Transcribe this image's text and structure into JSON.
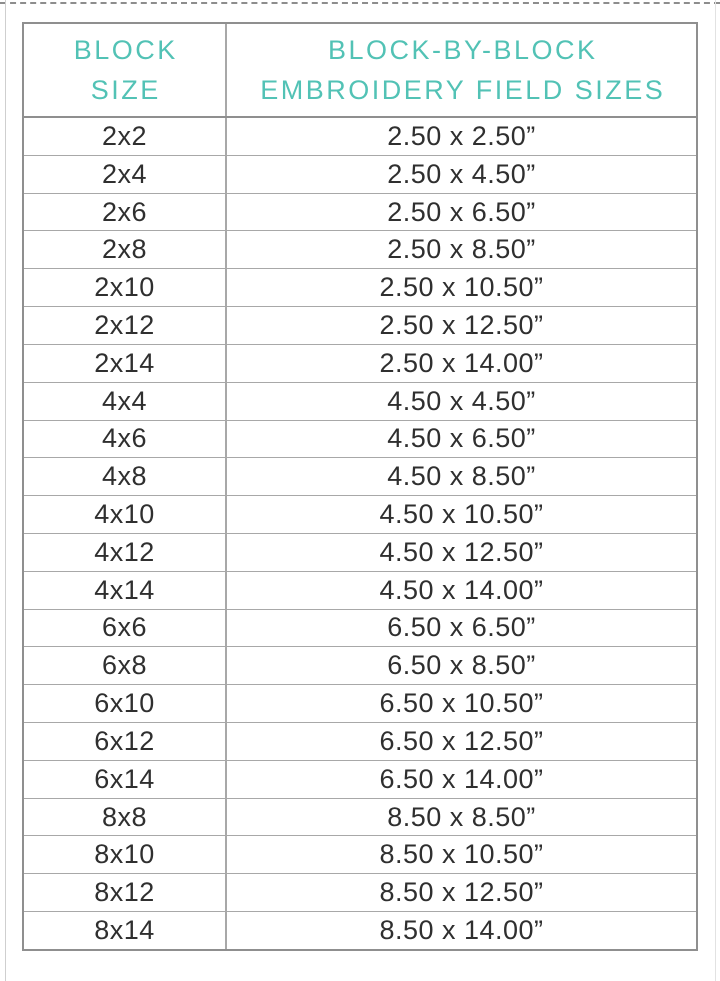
{
  "colors": {
    "accent_teal": "#52c2b5",
    "body_text": "#2f2f2f",
    "border_outer": "#8f8f8f",
    "border_inner": "#a8a8a8",
    "background": "#ffffff"
  },
  "chart_data": {
    "type": "table",
    "title": "Block-by-Block Embroidery Field Sizes",
    "columns": [
      {
        "line1": "BLOCK",
        "line2": "SIZE"
      },
      {
        "line1": "BLOCK-BY-BLOCK",
        "line2": "EMBROIDERY FIELD SIZES"
      }
    ],
    "rows": [
      {
        "block_size": "2x2",
        "field_size": "2.50 x 2.50”"
      },
      {
        "block_size": "2x4",
        "field_size": "2.50 x 4.50”"
      },
      {
        "block_size": "2x6",
        "field_size": "2.50 x 6.50”"
      },
      {
        "block_size": "2x8",
        "field_size": "2.50 x 8.50”"
      },
      {
        "block_size": "2x10",
        "field_size": "2.50 x 10.50”"
      },
      {
        "block_size": "2x12",
        "field_size": "2.50 x 12.50”"
      },
      {
        "block_size": "2x14",
        "field_size": "2.50 x 14.00”"
      },
      {
        "block_size": "4x4",
        "field_size": "4.50 x 4.50”"
      },
      {
        "block_size": "4x6",
        "field_size": "4.50 x 6.50”"
      },
      {
        "block_size": "4x8",
        "field_size": "4.50 x 8.50”"
      },
      {
        "block_size": "4x10",
        "field_size": "4.50 x 10.50”"
      },
      {
        "block_size": "4x12",
        "field_size": "4.50 x 12.50”"
      },
      {
        "block_size": "4x14",
        "field_size": "4.50 x 14.00”"
      },
      {
        "block_size": "6x6",
        "field_size": "6.50 x 6.50”"
      },
      {
        "block_size": "6x8",
        "field_size": "6.50 x 8.50”"
      },
      {
        "block_size": "6x10",
        "field_size": "6.50 x 10.50”"
      },
      {
        "block_size": "6x12",
        "field_size": "6.50 x 12.50”"
      },
      {
        "block_size": "6x14",
        "field_size": "6.50 x 14.00”"
      },
      {
        "block_size": "8x8",
        "field_size": "8.50 x 8.50”"
      },
      {
        "block_size": "8x10",
        "field_size": "8.50 x 10.50”"
      },
      {
        "block_size": "8x12",
        "field_size": "8.50 x 12.50”"
      },
      {
        "block_size": "8x14",
        "field_size": "8.50 x 14.00”"
      }
    ]
  }
}
